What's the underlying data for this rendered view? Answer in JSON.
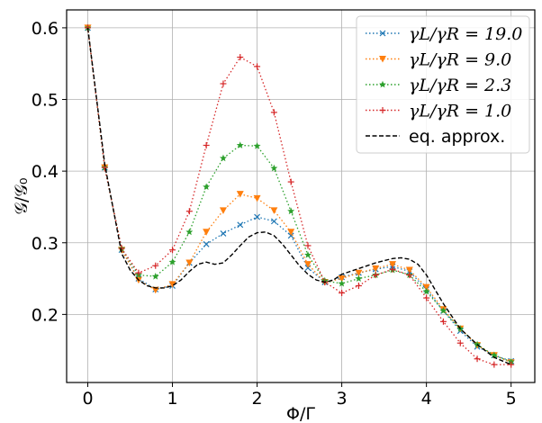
{
  "chart_data": {
    "type": "line",
    "xlabel": "Φ/Γ",
    "ylabel": "𝒢/𝒢₀",
    "xlim": [
      -0.25,
      5.28
    ],
    "ylim": [
      0.105,
      0.625
    ],
    "xticks": [
      0,
      1,
      2,
      3,
      4,
      5
    ],
    "xtick_labels": [
      "0",
      "1",
      "2",
      "3",
      "4",
      "5"
    ],
    "yticks": [
      0.2,
      0.3,
      0.4,
      0.5,
      0.6
    ],
    "ytick_labels": [
      "0.2",
      "0.3",
      "0.4",
      "0.5",
      "0.6"
    ],
    "grid": true,
    "legend_position": "top-right",
    "x": [
      0,
      0.2,
      0.4,
      0.6,
      0.8,
      1.0,
      1.2,
      1.4,
      1.6,
      1.8,
      2.0,
      2.2,
      2.4,
      2.6,
      2.8,
      3.0,
      3.2,
      3.4,
      3.6,
      3.8,
      4.0,
      4.2,
      4.4,
      4.6,
      4.8,
      5.0
    ],
    "series": [
      {
        "name": "γL/γR = 19.0",
        "legend_main": "γ",
        "color": "#1f77b4",
        "marker": "x",
        "values": [
          0.6,
          0.405,
          0.29,
          0.25,
          0.235,
          0.24,
          0.272,
          0.298,
          0.313,
          0.325,
          0.336,
          0.33,
          0.31,
          0.265,
          0.245,
          0.252,
          0.258,
          0.263,
          0.267,
          0.26,
          0.235,
          0.205,
          0.177,
          0.155,
          0.143,
          0.135
        ]
      },
      {
        "name": "γL/γR = 9.0",
        "color": "#ff7f0e",
        "marker": "v",
        "values": [
          0.6,
          0.405,
          0.29,
          0.248,
          0.234,
          0.242,
          0.272,
          0.315,
          0.345,
          0.368,
          0.362,
          0.345,
          0.315,
          0.27,
          0.245,
          0.25,
          0.258,
          0.264,
          0.27,
          0.262,
          0.238,
          0.207,
          0.18,
          0.157,
          0.143,
          0.133
        ]
      },
      {
        "name": "γL/γR = 2.3",
        "color": "#2ca02c",
        "marker": "*",
        "values": [
          0.6,
          0.405,
          0.292,
          0.255,
          0.253,
          0.273,
          0.315,
          0.378,
          0.418,
          0.436,
          0.435,
          0.404,
          0.344,
          0.283,
          0.247,
          0.243,
          0.25,
          0.255,
          0.262,
          0.255,
          0.232,
          0.205,
          0.18,
          0.158,
          0.143,
          0.134
        ]
      },
      {
        "name": "γL/γR = 1.0",
        "color": "#d62728",
        "marker": "+",
        "values": [
          0.6,
          0.405,
          0.292,
          0.258,
          0.268,
          0.29,
          0.344,
          0.436,
          0.522,
          0.559,
          0.546,
          0.482,
          0.385,
          0.296,
          0.245,
          0.23,
          0.24,
          0.255,
          0.263,
          0.255,
          0.223,
          0.19,
          0.16,
          0.138,
          0.13,
          0.13
        ]
      }
    ],
    "approx": {
      "name": "eq. approx.",
      "color": "#000000",
      "x": [
        0,
        0.2,
        0.4,
        0.5,
        0.6,
        0.7,
        0.8,
        0.9,
        1.0,
        1.1,
        1.2,
        1.3,
        1.4,
        1.5,
        1.6,
        1.7,
        1.8,
        1.9,
        2.0,
        2.1,
        2.2,
        2.3,
        2.4,
        2.5,
        2.6,
        2.7,
        2.8,
        2.9,
        3.0,
        3.2,
        3.4,
        3.6,
        3.7,
        3.8,
        3.9,
        4.0,
        4.2,
        4.4,
        4.6,
        4.8,
        5.0
      ],
      "values": [
        0.6,
        0.41,
        0.285,
        0.262,
        0.248,
        0.24,
        0.237,
        0.237,
        0.24,
        0.248,
        0.26,
        0.27,
        0.273,
        0.27,
        0.272,
        0.283,
        0.296,
        0.308,
        0.314,
        0.315,
        0.31,
        0.298,
        0.283,
        0.268,
        0.256,
        0.248,
        0.245,
        0.248,
        0.256,
        0.264,
        0.272,
        0.278,
        0.279,
        0.277,
        0.27,
        0.255,
        0.215,
        0.18,
        0.158,
        0.14,
        0.13
      ]
    }
  }
}
